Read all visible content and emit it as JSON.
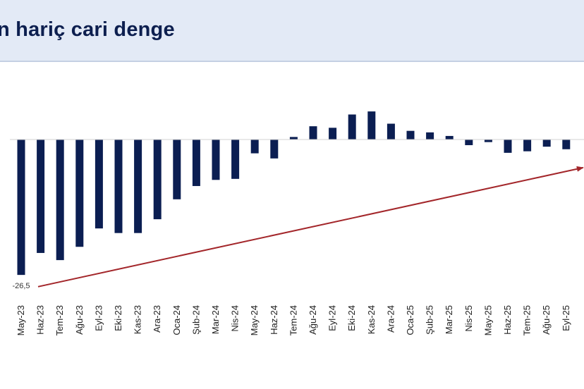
{
  "page": {
    "title": "n hariç cari denge"
  },
  "colors": {
    "bar": "#0b1e52",
    "arrow": "#a3262a",
    "header_bg": "#e3eaf6"
  },
  "chart_data": {
    "type": "bar",
    "title": "n hariç cari denge",
    "categories": [
      "May-23",
      "Haz-23",
      "Tem-23",
      "Ağu-23",
      "Eyl-23",
      "Eki-23",
      "Kas-23",
      "Ara-23",
      "Oca-24",
      "Şub-24",
      "Mar-24",
      "Nis-24",
      "May-24",
      "Haz-24",
      "Tem-24",
      "Ağu-24",
      "Eyl-24",
      "Eki-24",
      "Kas-24",
      "Ara-24",
      "Oca-25",
      "Şub-25",
      "Mar-25",
      "Nis-25",
      "May-25",
      "Haz-25",
      "Tem-25",
      "Ağu-25",
      "Eyl-25"
    ],
    "values": [
      -26.5,
      -22.2,
      -23.6,
      -21.0,
      -17.4,
      -18.3,
      -18.3,
      -15.6,
      -11.7,
      -9.1,
      -7.9,
      -7.7,
      -2.7,
      -3.7,
      0.5,
      2.6,
      2.3,
      4.9,
      5.5,
      3.1,
      1.7,
      1.4,
      0.7,
      -1.1,
      -0.5,
      -2.6,
      -2.3,
      -1.4,
      -1.9
    ],
    "data_labels": [
      {
        "category": "May-23",
        "text": "-26,5"
      }
    ],
    "trend_arrow": {
      "from_category": "May-23",
      "from_value": -28.8,
      "to_category": "Eyl-25",
      "to_value": -5.5
    },
    "xlabel": "",
    "ylabel": "",
    "ylim": [
      -30,
      8
    ],
    "grid": false,
    "legend": "none"
  }
}
